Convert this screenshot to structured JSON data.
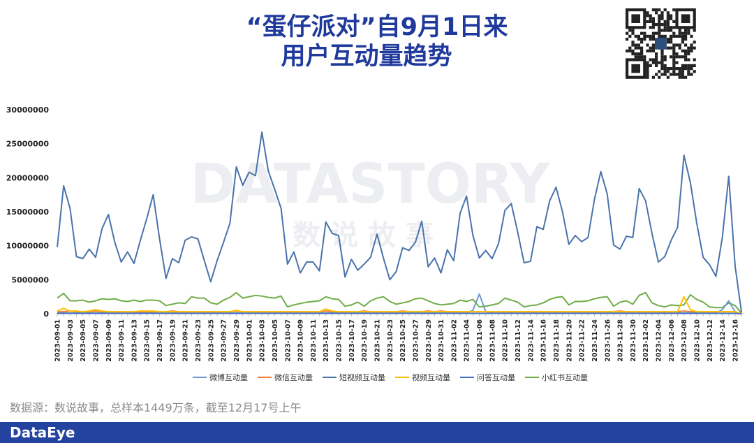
{
  "chart_data": {
    "type": "line",
    "title_lines": [
      "“蛋仔派对”自9月1日来",
      "用户互动量趋势"
    ],
    "watermark": "DATASTORY",
    "watermark_sub": "数 说 故 事",
    "source": "数据源：数说故事，总样本1449万条，截至12月17号上午",
    "brand": "DataEye",
    "ylim": [
      0,
      30000000
    ],
    "yticks": [
      0,
      5000000,
      10000000,
      15000000,
      20000000,
      25000000,
      30000000
    ],
    "grid": false,
    "legend": "bottom",
    "categories": [
      "2023-09-01",
      null,
      "2023-09-03",
      null,
      "2023-09-05",
      null,
      "2023-09-07",
      null,
      "2023-09-09",
      null,
      "2023-09-11",
      null,
      "2023-09-13",
      null,
      "2023-09-15",
      null,
      "2023-09-17",
      null,
      "2023-09-19",
      null,
      "2023-09-21",
      null,
      "2023-09-23",
      null,
      "2023-09-25",
      null,
      "2023-09-27",
      null,
      "2023-09-29",
      null,
      "2023-10-01",
      null,
      "2023-10-03",
      null,
      "2023-10-05",
      null,
      "2023-10-07",
      null,
      "2023-10-09",
      null,
      "2023-10-11",
      null,
      "2023-10-13",
      null,
      "2023-10-15",
      null,
      "2023-10-17",
      null,
      "2023-10-19",
      null,
      "2023-10-21",
      null,
      "2023-10-23",
      null,
      "2023-10-25",
      null,
      "2023-10-27",
      null,
      "2023-10-29",
      null,
      "2023-10-31",
      null,
      "2023-11-02",
      null,
      "2023-11-04",
      null,
      "2023-11-06",
      null,
      "2023-11-08",
      null,
      "2023-11-10",
      null,
      "2023-11-12",
      null,
      "2023-11-14",
      null,
      "2023-11-16",
      null,
      "2023-11-18",
      null,
      "2023-11-20",
      null,
      "2023-11-22",
      null,
      "2023-11-24",
      null,
      "2023-11-26",
      null,
      "2023-11-28",
      null,
      "2023-11-30",
      null,
      "2023-12-02",
      null,
      "2023-12-04",
      null,
      "2023-12-06",
      null,
      "2023-12-08",
      null,
      "2023-12-10",
      null,
      "2023-12-12",
      null,
      "2023-12-14",
      null,
      "2023-12-16",
      null
    ],
    "series": [
      {
        "name": "微博互动量",
        "color": "#6b9bd1",
        "values": [
          100000,
          100000,
          100000,
          100000,
          100000,
          100000,
          100000,
          100000,
          100000,
          100000,
          100000,
          100000,
          100000,
          100000,
          100000,
          100000,
          100000,
          100000,
          100000,
          100000,
          100000,
          100000,
          100000,
          100000,
          100000,
          100000,
          100000,
          100000,
          100000,
          100000,
          100000,
          100000,
          100000,
          100000,
          100000,
          100000,
          100000,
          100000,
          100000,
          100000,
          100000,
          100000,
          100000,
          100000,
          100000,
          100000,
          100000,
          100000,
          100000,
          100000,
          100000,
          100000,
          100000,
          100000,
          100000,
          100000,
          100000,
          100000,
          100000,
          100000,
          100000,
          100000,
          100000,
          100000,
          100000,
          500000,
          2900000,
          300000,
          100000,
          100000,
          100000,
          100000,
          100000,
          100000,
          100000,
          100000,
          100000,
          100000,
          100000,
          100000,
          100000,
          100000,
          100000,
          100000,
          100000,
          100000,
          100000,
          100000,
          100000,
          100000,
          100000,
          100000,
          100000,
          100000,
          100000,
          100000,
          100000,
          100000,
          100000,
          100000,
          100000,
          100000,
          100000,
          100000,
          600000,
          1900000,
          300000,
          0
        ]
      },
      {
        "name": "微信互动量",
        "color": "#ed7d31",
        "values": [
          300000,
          300000,
          400000,
          300000,
          300000,
          300000,
          400000,
          300000,
          300000,
          300000,
          300000,
          300000,
          300000,
          300000,
          300000,
          300000,
          300000,
          300000,
          400000,
          300000,
          300000,
          300000,
          300000,
          300000,
          300000,
          300000,
          300000,
          300000,
          400000,
          300000,
          300000,
          300000,
          300000,
          300000,
          300000,
          300000,
          300000,
          300000,
          300000,
          300000,
          300000,
          300000,
          400000,
          300000,
          300000,
          300000,
          300000,
          300000,
          400000,
          300000,
          300000,
          300000,
          300000,
          300000,
          400000,
          300000,
          300000,
          300000,
          400000,
          300000,
          400000,
          300000,
          300000,
          300000,
          300000,
          300000,
          300000,
          300000,
          300000,
          300000,
          300000,
          300000,
          300000,
          300000,
          300000,
          300000,
          300000,
          300000,
          300000,
          300000,
          300000,
          300000,
          300000,
          300000,
          300000,
          300000,
          300000,
          300000,
          400000,
          300000,
          300000,
          300000,
          300000,
          300000,
          300000,
          300000,
          300000,
          300000,
          400000,
          300000,
          300000,
          300000,
          300000,
          300000,
          300000,
          300000,
          300000,
          0
        ]
      },
      {
        "name": "短视频互动量",
        "color": "#4a72ab",
        "values": [
          9800000,
          18800000,
          15500000,
          8400000,
          8100000,
          9500000,
          8300000,
          12500000,
          14600000,
          10500000,
          7600000,
          9100000,
          7400000,
          10800000,
          14000000,
          17500000,
          11000000,
          5200000,
          8100000,
          7500000,
          10800000,
          11300000,
          11000000,
          7800000,
          4700000,
          7800000,
          10500000,
          13300000,
          21600000,
          18900000,
          20800000,
          20300000,
          26700000,
          21000000,
          18300000,
          15500000,
          7300000,
          9100000,
          6000000,
          7600000,
          7600000,
          6300000,
          13500000,
          11800000,
          11500000,
          5400000,
          8000000,
          6400000,
          7300000,
          8300000,
          11700000,
          8200000,
          5000000,
          6200000,
          9700000,
          9300000,
          10500000,
          13600000,
          6900000,
          8200000,
          6000000,
          9400000,
          7800000,
          14800000,
          17300000,
          11500000,
          8200000,
          9300000,
          8100000,
          10300000,
          15200000,
          16200000,
          12000000,
          7500000,
          7700000,
          12800000,
          12400000,
          16600000,
          18600000,
          15000000,
          10200000,
          11500000,
          10600000,
          11200000,
          16800000,
          20900000,
          17600000,
          10100000,
          9500000,
          11400000,
          11200000,
          18400000,
          16600000,
          11800000,
          7600000,
          8400000,
          10800000,
          12700000,
          23300000,
          19300000,
          13300000,
          8300000,
          7200000,
          5500000,
          11200000,
          20200000,
          7000000,
          200000
        ]
      },
      {
        "name": "视频互动量",
        "color": "#ffc000",
        "values": [
          400000,
          800000,
          400000,
          400000,
          300000,
          400000,
          600000,
          400000,
          300000,
          300000,
          300000,
          300000,
          300000,
          400000,
          400000,
          400000,
          300000,
          300000,
          300000,
          300000,
          300000,
          300000,
          300000,
          300000,
          300000,
          300000,
          300000,
          300000,
          500000,
          300000,
          300000,
          300000,
          300000,
          300000,
          300000,
          300000,
          300000,
          300000,
          300000,
          300000,
          300000,
          300000,
          700000,
          400000,
          300000,
          300000,
          300000,
          300000,
          300000,
          300000,
          300000,
          300000,
          300000,
          300000,
          300000,
          300000,
          300000,
          300000,
          300000,
          300000,
          300000,
          300000,
          300000,
          300000,
          300000,
          300000,
          300000,
          300000,
          300000,
          300000,
          300000,
          300000,
          300000,
          300000,
          300000,
          300000,
          300000,
          300000,
          300000,
          300000,
          300000,
          300000,
          300000,
          300000,
          300000,
          300000,
          300000,
          300000,
          300000,
          300000,
          300000,
          300000,
          300000,
          300000,
          300000,
          300000,
          300000,
          300000,
          2500000,
          600000,
          300000,
          300000,
          300000,
          300000,
          300000,
          300000,
          300000,
          0
        ]
      },
      {
        "name": "问答互动量",
        "color": "#4472c4",
        "values": [
          50000,
          50000,
          50000,
          50000,
          50000,
          50000,
          50000,
          50000,
          50000,
          50000,
          50000,
          50000,
          50000,
          50000,
          50000,
          50000,
          50000,
          50000,
          50000,
          50000,
          50000,
          50000,
          50000,
          50000,
          50000,
          50000,
          50000,
          50000,
          50000,
          50000,
          50000,
          50000,
          50000,
          50000,
          50000,
          50000,
          50000,
          50000,
          50000,
          50000,
          50000,
          50000,
          50000,
          50000,
          50000,
          50000,
          50000,
          50000,
          50000,
          50000,
          50000,
          50000,
          50000,
          50000,
          50000,
          50000,
          50000,
          50000,
          50000,
          50000,
          50000,
          50000,
          50000,
          50000,
          50000,
          50000,
          50000,
          50000,
          50000,
          50000,
          50000,
          50000,
          50000,
          50000,
          50000,
          50000,
          50000,
          50000,
          50000,
          50000,
          50000,
          50000,
          50000,
          50000,
          50000,
          50000,
          50000,
          50000,
          50000,
          50000,
          50000,
          50000,
          50000,
          50000,
          50000,
          50000,
          50000,
          50000,
          50000,
          50000,
          50000,
          50000,
          50000,
          50000,
          50000,
          50000,
          50000,
          0
        ]
      },
      {
        "name": "小红书互动量",
        "color": "#70ad47",
        "values": [
          2300000,
          3000000,
          1900000,
          1900000,
          2000000,
          1700000,
          1900000,
          2200000,
          2100000,
          2200000,
          1900000,
          1800000,
          2000000,
          1800000,
          2000000,
          2000000,
          1900000,
          1200000,
          1400000,
          1600000,
          1500000,
          2500000,
          2300000,
          2300000,
          1600000,
          1400000,
          2000000,
          2400000,
          3100000,
          2300000,
          2500000,
          2700000,
          2600000,
          2400000,
          2300000,
          2600000,
          1000000,
          1300000,
          1500000,
          1700000,
          1800000,
          1900000,
          2500000,
          2200000,
          2100000,
          1100000,
          1300000,
          1700000,
          1100000,
          1900000,
          2300000,
          2500000,
          1800000,
          1400000,
          1600000,
          1800000,
          2200000,
          2300000,
          1900000,
          1500000,
          1300000,
          1400000,
          1500000,
          2000000,
          1800000,
          2100000,
          1000000,
          1100000,
          1300000,
          1500000,
          2300000,
          2000000,
          1700000,
          1000000,
          1200000,
          1300000,
          1600000,
          2100000,
          2400000,
          2500000,
          1300000,
          1800000,
          1800000,
          1900000,
          2200000,
          2400000,
          2500000,
          1100000,
          1700000,
          1900000,
          1400000,
          2700000,
          3100000,
          1600000,
          1200000,
          1000000,
          1300000,
          1200000,
          1300000,
          2800000,
          2100000,
          1700000,
          1000000,
          900000,
          900000,
          1600000,
          1200000,
          100000
        ]
      }
    ]
  }
}
